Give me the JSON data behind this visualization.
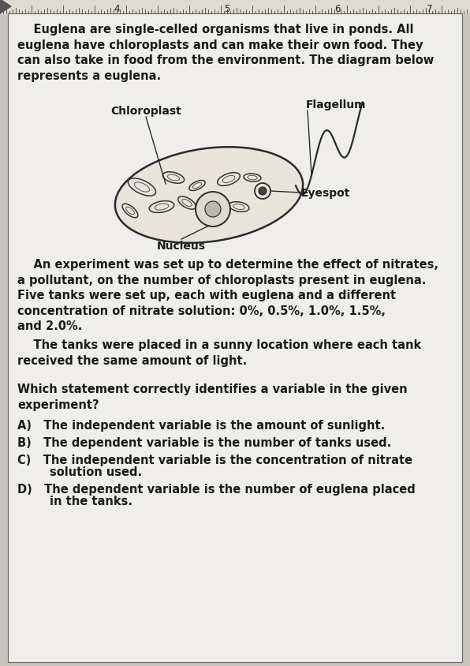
{
  "page_bg": "#c8c4be",
  "content_bg": "#f0eeea",
  "border_color": "#666666",
  "ruler_bg": "#dedad4",
  "para1_indent": "    Euglena are single-celled organisms that live in ponds. All\neuglena have chloroplasts and can make their own food. They\ncan also take in food from the environment. The diagram below\nrepresents a euglena.",
  "para2_indent": "    An experiment was set up to determine the effect of nitrates,\na pollutant, on the number of chloroplasts present in euglena.\nFive tanks were set up, each with euglena and a different\nconcentration of nitrate solution: 0%, 0.5%, 1.0%, 1.5%,\nand 2.0%.",
  "para3_indent": "    The tanks were placed in a sunny location where each tank\nreceived the same amount of light.",
  "question": "Which statement correctly identifies a variable in the given\nexperiment?",
  "opt_a": "A)   The independent variable is the amount of sunlight.",
  "opt_b": "B)   The dependent variable is the number of tanks used.",
  "opt_c1": "C)   The independent variable is the concentration of nitrate",
  "opt_c2": "        solution used.",
  "opt_d1": "D)   The dependent variable is the number of euglena placed",
  "opt_d2": "        in the tanks.",
  "label_chloroplast": "Chloroplast",
  "label_flagellum": "Flagellum",
  "label_eyespot": "Eyespot",
  "label_nucleus": "Nucleus",
  "text_color": "#1a1a1a",
  "font_size_body": 10.5,
  "font_size_label": 10.0,
  "font_size_ruler": 8.5
}
